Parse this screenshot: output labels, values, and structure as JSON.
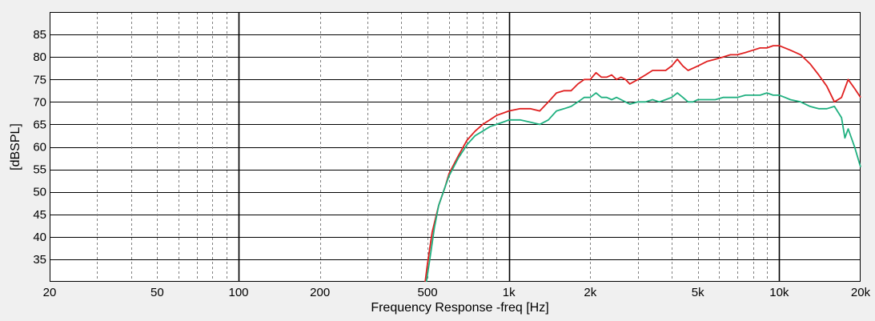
{
  "chart_data": {
    "type": "line",
    "xlabel": "Frequency Response -freq [Hz]",
    "ylabel": "[dBSPL]",
    "x_scale": "log",
    "xlim": [
      20,
      20000
    ],
    "ylim": [
      30,
      90
    ],
    "grid": true,
    "x_ticks": [
      {
        "value": 20,
        "label": "20"
      },
      {
        "value": 50,
        "label": "50"
      },
      {
        "value": 100,
        "label": "100"
      },
      {
        "value": 200,
        "label": "200"
      },
      {
        "value": 500,
        "label": "500"
      },
      {
        "value": 1000,
        "label": "1k"
      },
      {
        "value": 2000,
        "label": "2k"
      },
      {
        "value": 5000,
        "label": "5k"
      },
      {
        "value": 10000,
        "label": "10k"
      },
      {
        "value": 20000,
        "label": "20k"
      }
    ],
    "y_ticks": [
      {
        "value": 35,
        "label": "35"
      },
      {
        "value": 40,
        "label": "40"
      },
      {
        "value": 45,
        "label": "45"
      },
      {
        "value": 50,
        "label": "50"
      },
      {
        "value": 55,
        "label": "55"
      },
      {
        "value": 60,
        "label": "60"
      },
      {
        "value": 65,
        "label": "65"
      },
      {
        "value": 70,
        "label": "70"
      },
      {
        "value": 75,
        "label": "75"
      },
      {
        "value": 80,
        "label": "80"
      },
      {
        "value": 85,
        "label": "85"
      }
    ],
    "series": [
      {
        "color": "#e02020",
        "x": [
          490,
          500,
          520,
          550,
          580,
          600,
          650,
          700,
          750,
          800,
          850,
          900,
          950,
          1000,
          1100,
          1200,
          1300,
          1400,
          1500,
          1600,
          1700,
          1800,
          1900,
          2000,
          2100,
          2200,
          2300,
          2400,
          2500,
          2600,
          2700,
          2800,
          3000,
          3200,
          3400,
          3600,
          3800,
          4000,
          4200,
          4400,
          4600,
          4800,
          5000,
          5400,
          5800,
          6200,
          6600,
          7000,
          7500,
          8000,
          8500,
          9000,
          9500,
          10000,
          10500,
          11000,
          12000,
          13000,
          14000,
          15000,
          16000,
          17000,
          18000,
          19000,
          20000
        ],
        "y": [
          30,
          34,
          41,
          47,
          51,
          54,
          58,
          61.5,
          63.5,
          65,
          66,
          67,
          67.5,
          68,
          68.5,
          68.5,
          68,
          70,
          72,
          72.5,
          72.5,
          74,
          75,
          75,
          76.5,
          75.5,
          75.5,
          76,
          75,
          75.5,
          75,
          74,
          75,
          76,
          77,
          77,
          77,
          78,
          79.5,
          78,
          77,
          77.5,
          78,
          79,
          79.5,
          80,
          80.5,
          80.5,
          81,
          81.5,
          82,
          82,
          82.5,
          82.5,
          82,
          81.5,
          80.5,
          78.5,
          76,
          73.5,
          70,
          71,
          75,
          73,
          71
        ]
      },
      {
        "color": "#20b080",
        "x": [
          495,
          510,
          530,
          550,
          580,
          600,
          650,
          700,
          750,
          800,
          850,
          900,
          950,
          1000,
          1100,
          1200,
          1300,
          1400,
          1500,
          1600,
          1700,
          1800,
          1900,
          2000,
          2100,
          2200,
          2300,
          2400,
          2500,
          2600,
          2700,
          2800,
          3000,
          3200,
          3400,
          3600,
          3800,
          4000,
          4200,
          4400,
          4600,
          4800,
          5000,
          5400,
          5800,
          6200,
          6600,
          7000,
          7500,
          8000,
          8500,
          9000,
          9500,
          10000,
          10500,
          11000,
          12000,
          13000,
          14000,
          15000,
          16000,
          17000,
          17500,
          18000,
          19000,
          20000
        ],
        "y": [
          30,
          35,
          42,
          47,
          51,
          53.5,
          57.5,
          60.5,
          62.5,
          63.5,
          64.5,
          65,
          65.5,
          66,
          66,
          65.5,
          65,
          66,
          68,
          68.5,
          69,
          70,
          71,
          71,
          72,
          71,
          71,
          70.5,
          71,
          70.5,
          70,
          69.5,
          70,
          70,
          70.5,
          70,
          70.5,
          71,
          72,
          71,
          70,
          70,
          70.5,
          70.5,
          70.5,
          71,
          71,
          71,
          71.5,
          71.5,
          71.5,
          72,
          71.5,
          71.5,
          71,
          70.5,
          70,
          69,
          68.5,
          68.5,
          69,
          66.5,
          62,
          64,
          60,
          55.5
        ]
      }
    ]
  }
}
